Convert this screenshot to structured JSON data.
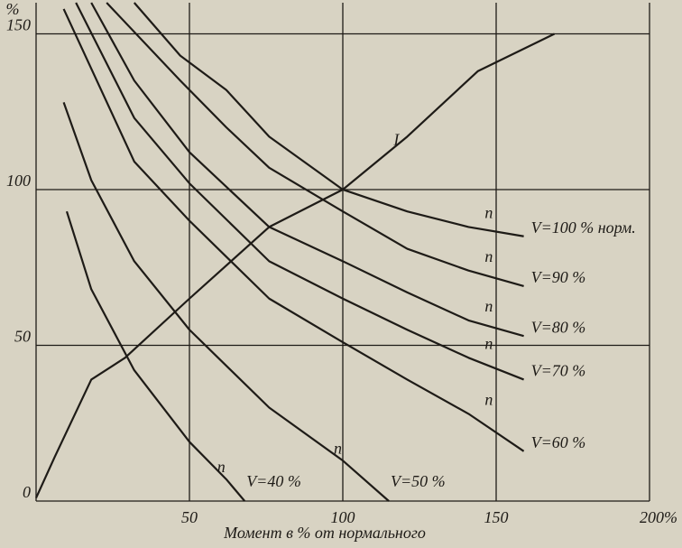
{
  "chart_data": {
    "type": "line",
    "x_label": "Момент в % от нормального",
    "y_label": "%",
    "xlim": [
      0,
      200
    ],
    "ylim": [
      0,
      160
    ],
    "xticks": [
      50,
      100,
      150,
      {
        "value": 200,
        "label": "200%"
      }
    ],
    "yticks": [
      0,
      50,
      100,
      150
    ],
    "grid": true,
    "color": "#1e1b17",
    "series": [
      {
        "name": "I",
        "x": [
          0,
          6,
          18,
          29,
          50,
          76,
          100,
          121,
          144,
          169
        ],
        "values": [
          1,
          14,
          39,
          46,
          65,
          88,
          100,
          117,
          138,
          150
        ]
      },
      {
        "name": "V=100 % норм.",
        "tag": "n",
        "x": [
          32,
          47,
          62,
          76,
          100,
          121,
          141,
          159
        ],
        "values": [
          160,
          143,
          132,
          117,
          100,
          93,
          88,
          85
        ]
      },
      {
        "name": "V=90 %",
        "tag": "n",
        "x": [
          23,
          47,
          62,
          76,
          100,
          121,
          141,
          159
        ],
        "values": [
          160,
          135,
          120,
          107,
          93,
          81,
          74,
          69
        ]
      },
      {
        "name": "V=80 %",
        "tag": "n",
        "x": [
          18,
          32,
          50,
          76,
          100,
          121,
          141,
          159
        ],
        "values": [
          160,
          135,
          112,
          88,
          77,
          67,
          58,
          53
        ]
      },
      {
        "name": "V=70 %",
        "tag": "n",
        "x": [
          13,
          32,
          50,
          76,
          100,
          121,
          141,
          159
        ],
        "values": [
          160,
          123,
          102,
          77,
          65,
          55,
          46,
          39
        ]
      },
      {
        "name": "V=60 %",
        "tag": "n",
        "x": [
          9,
          32,
          50,
          76,
          100,
          121,
          141,
          159
        ],
        "values": [
          158,
          109,
          90,
          65,
          51,
          39,
          28,
          16
        ]
      },
      {
        "name": "V=50 %",
        "tag": "n",
        "x": [
          9,
          18,
          32,
          50,
          76,
          100,
          115
        ],
        "values": [
          128,
          103,
          77,
          55,
          30,
          13,
          0
        ]
      },
      {
        "name": "V=40 %",
        "tag": "n",
        "x": [
          10,
          18,
          32,
          50,
          62,
          68
        ],
        "values": [
          93,
          68,
          42,
          19,
          7,
          0
        ]
      }
    ]
  }
}
